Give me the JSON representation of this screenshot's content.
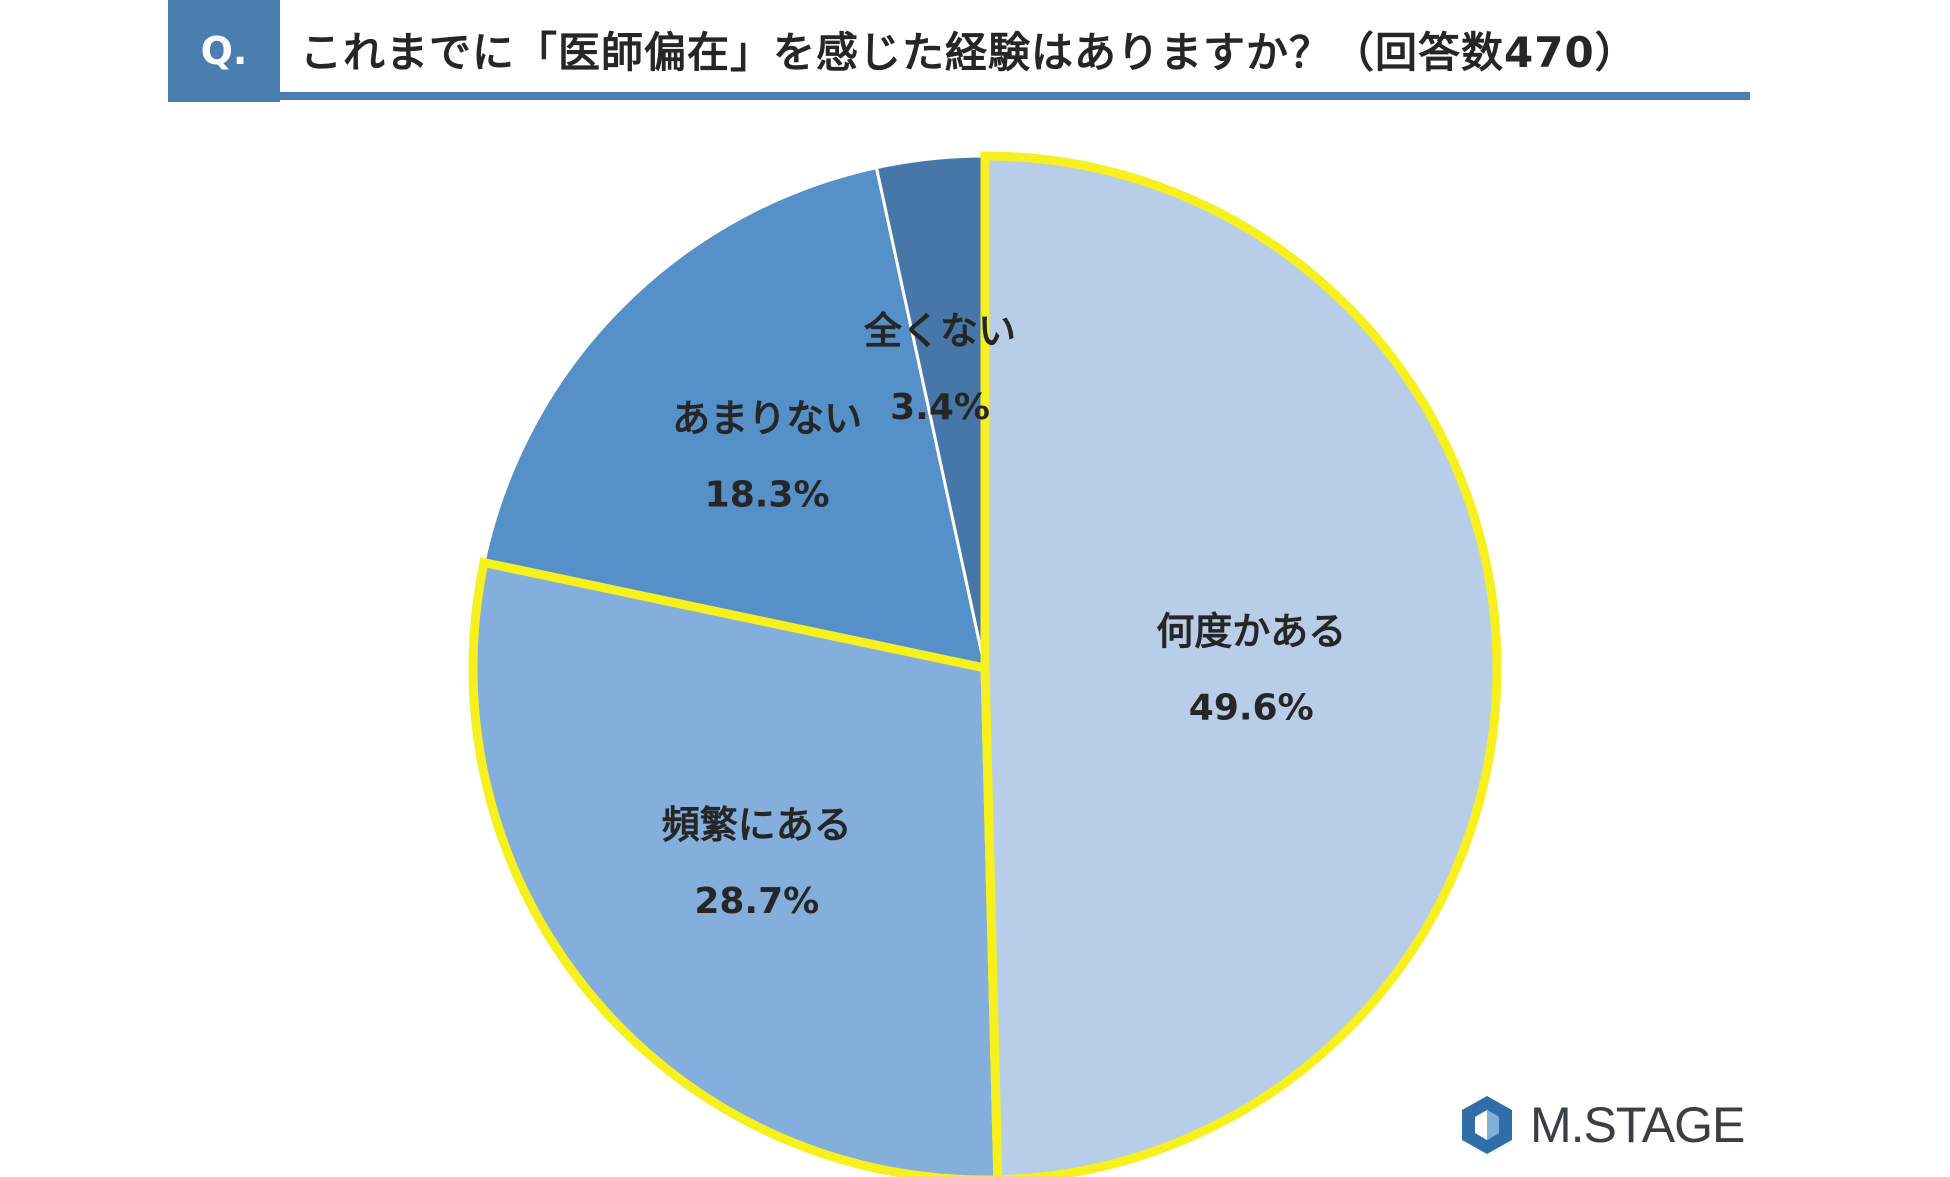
{
  "header": {
    "q_label": "Q.",
    "title": "これまでに「医師偏在」を感じた経験はありますか？（回答数470）"
  },
  "chart_data": {
    "type": "pie",
    "title": "これまでに「医師偏在」を感じた経験はありますか？（回答数470）",
    "slices": [
      {
        "label": "何度かある",
        "value": 49.6,
        "display": "49.6%",
        "color": "#b8cde8",
        "highlighted": true
      },
      {
        "label": "頻繁にある",
        "value": 28.7,
        "display": "28.7%",
        "color": "#84aedb",
        "highlighted": true
      },
      {
        "label": "あまりない",
        "value": 18.3,
        "display": "18.3%",
        "color": "#5591c8",
        "highlighted": false
      },
      {
        "label": "全くない",
        "value": 3.4,
        "display": "3.4%",
        "color": "#4677a8",
        "highlighted": false
      }
    ],
    "start": "12 o'clock",
    "direction": "clockwise",
    "highlight_color": "#f5f01e"
  },
  "brand": {
    "name": "M.STAGE",
    "mark_color": "#2f6ea8"
  }
}
